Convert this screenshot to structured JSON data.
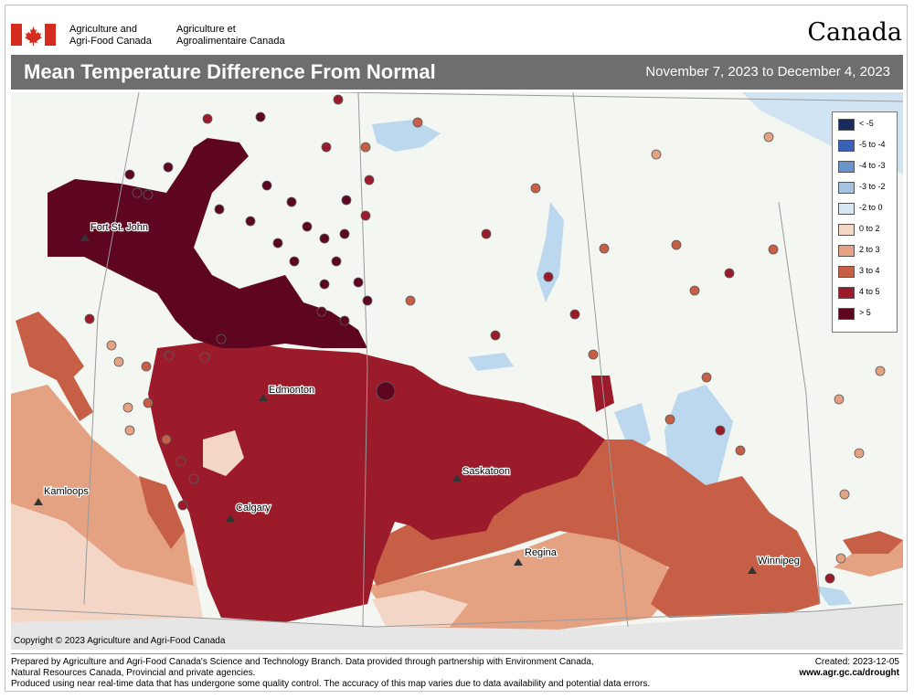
{
  "header": {
    "agency_en_line1": "Agriculture and",
    "agency_en_line2": "Agri-Food Canada",
    "agency_fr_line1": "Agriculture et",
    "agency_fr_line2": "Agroalimentaire Canada",
    "wordmark": "Canada",
    "flag_color": "#d52b1e"
  },
  "title": {
    "main": "Mean Temperature Difference From Normal",
    "date_range": "November 7, 2023 to December 4, 2023"
  },
  "legend": {
    "items": [
      {
        "label": "< -5",
        "color": "#1a2c5e"
      },
      {
        "label": "-5 to -4",
        "color": "#3a62b4"
      },
      {
        "label": "-4 to -3",
        "color": "#6a95cc"
      },
      {
        "label": "-3 to -2",
        "color": "#a5c3e1"
      },
      {
        "label": "-2 to 0",
        "color": "#d7e6f2"
      },
      {
        "label": "0 to 2",
        "color": "#f3d6c5"
      },
      {
        "label": "2 to 3",
        "color": "#e4a282"
      },
      {
        "label": "3 to 4",
        "color": "#c65f45"
      },
      {
        "label": "4 to 5",
        "color": "#9c1b2b"
      },
      {
        "label": "> 5",
        "color": "#5e0620"
      }
    ]
  },
  "cities": [
    {
      "name": "Fort St. John"
    },
    {
      "name": "Edmonton"
    },
    {
      "name": "Saskatoon"
    },
    {
      "name": "Calgary"
    },
    {
      "name": "Regina"
    },
    {
      "name": "Winnipeg"
    },
    {
      "name": "Kamloops"
    }
  ],
  "map": {
    "copyright": "Copyright © 2023 Agriculture and Agri-Food Canada"
  },
  "footer": {
    "line1": "Prepared by Agriculture and Agri-Food Canada's Science and Technology Branch. Data provided through partnership with Environment Canada,",
    "line2": "Natural Resources Canada, Provincial and private agencies.",
    "line3": "Produced using near real-time data that has undergone some quality control. The accuracy of this map varies due to data availability and potential data errors.",
    "created": "Created: 2023-12-05",
    "url": "www.agr.gc.ca/drought"
  }
}
